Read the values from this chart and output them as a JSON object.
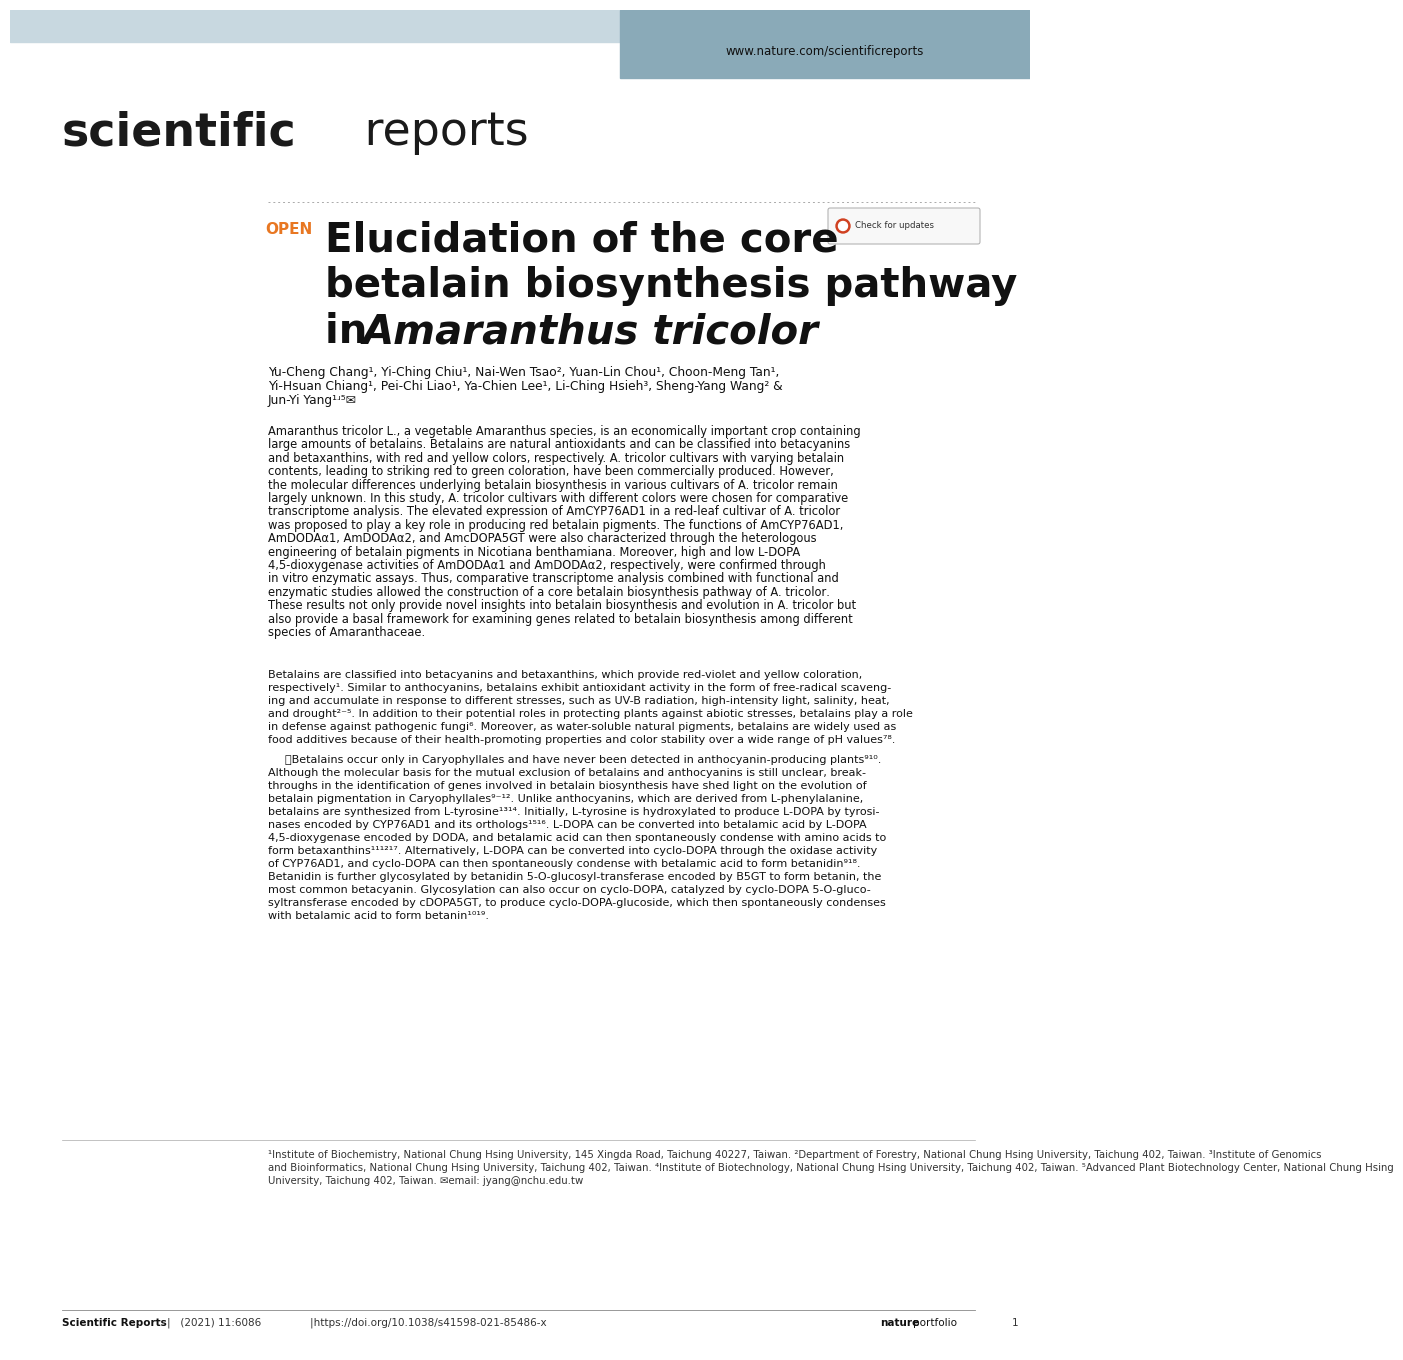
{
  "bg_color": "#ffffff",
  "header_bg": "#c8d8e0",
  "header_tab_bg": "#8aaab8",
  "header_url": "www.nature.com/scientificreports",
  "journal_bold": "scientific",
  "journal_regular": " reports",
  "journal_color": "#1a1a1a",
  "open_label": "OPEN",
  "open_color": "#e87722",
  "title_line1": "Elucidation of the core",
  "title_line2": "betalain biosynthesis pathway",
  "title_line3_normal": "in ",
  "title_line3_italic": "Amaranthus tricolor",
  "title_color": "#111111",
  "authors_line1": "Yu-Cheng Chang¹, Yi-Ching Chiu¹, Nai-Wen Tsao², Yuan-Lin Chou¹, Choon-Meng Tan¹,",
  "authors_line2": "Yi-Hsuan Chiang¹, Pei-Chi Liao¹, Ya-Chien Lee¹, Li-Ching Hsieh³, Sheng-Yang Wang² &",
  "authors_line3": "Jun-Yi Yang¹ʴ⁵✉",
  "abstract_line1": "Amaranthus tricolor L., a vegetable ​Amaranthus​ species, is an economically important crop containing",
  "abstract_line2": "large amounts of betalains. Betalains are natural antioxidants and can be classified into betacyanins",
  "abstract_line3": "and betaxanthins, with red and yellow colors, respectively. ​A. tricolor​ cultivars with varying betalain",
  "abstract_line4": "contents, leading to striking red to green coloration, have been commercially produced. However,",
  "abstract_line5": "the molecular differences underlying betalain biosynthesis in various cultivars of ​A. tricolor​ remain",
  "abstract_line6": "largely unknown. In this study, ​A. tricolor​ cultivars with different colors were chosen for comparative",
  "abstract_line7": "transcriptome analysis. The elevated expression of ​AmCYP76AD1​ in a red-leaf cultivar of ​A. tricolor",
  "abstract_line8": "was proposed to play a key role in producing red betalain pigments. The functions of ​AmCYP76AD1​,",
  "abstract_line9": "​AmDODAα1​, ​AmDODAα2​, and ​AmcDOPA5GT​ were also characterized through the heterologous",
  "abstract_line10": "engineering of betalain pigments in ​Nicotiana benthamiana​. Moreover, high and low L-DOPA",
  "abstract_line11": "4,5-dioxygenase activities of AmDODAα1 and AmDODAα2, respectively, were confirmed through",
  "abstract_line12": "in vitro enzymatic assays. Thus, comparative transcriptome analysis combined with functional and",
  "abstract_line13": "enzymatic studies allowed the construction of a core betalain biosynthesis pathway of ​A. tricolor​.",
  "abstract_line14": "These results not only provide novel insights into betalain biosynthesis and evolution in ​A. tricolor​ but",
  "abstract_line15": "also provide a basal framework for examining genes related to betalain biosynthesis among different",
  "abstract_line16": "species of ​Amaranthaceae​.",
  "body1_line1": "Betalains are classified into betacyanins and betaxanthins, which provide red-violet and yellow coloration,",
  "body1_line2": "respectively¹. Similar to anthocyanins, betalains exhibit antioxidant activity in the form of free-radical scaveng-",
  "body1_line3": "ing and accumulate in response to different stresses, such as UV-B radiation, high-intensity light, salinity, heat,",
  "body1_line4": "and drought²⁻⁵. In addition to their potential roles in protecting plants against abiotic stresses, betalains play a role",
  "body1_line5": "in defense against pathogenic fungi⁶. Moreover, as water-soluble natural pigments, betalains are widely used as",
  "body1_line6": "food additives because of their health-promoting properties and color stability over a wide range of pH values⁷⁸.",
  "body2_line1": "\tBetalains occur only in Caryophyllales and have never been detected in anthocyanin-producing plants⁹¹⁰.",
  "body2_line2": "Although the molecular basis for the mutual exclusion of betalains and anthocyanins is still unclear, break-",
  "body2_line3": "throughs in the identification of genes involved in betalain biosynthesis have shed light on the evolution of",
  "body2_line4": "betalain pigmentation in Caryophyllales⁹⁻¹². Unlike anthocyanins, which are derived from L-phenylalanine,",
  "body2_line5": "betalains are synthesized from L-tyrosine¹³¹⁴. Initially, L-tyrosine is hydroxylated to produce L-DOPA by tyrosi-",
  "body2_line6": "nases encoded by ​CYP76AD1​ and its orthologs¹⁵¹⁶. L-DOPA can be converted into betalamic acid by L-DOPA",
  "body2_line7": "4,5-dioxygenase encoded by ​DODA​, and betalamic acid can then spontaneously condense with amino acids to",
  "body2_line8": "form betaxanthins¹¹¹²¹⁷. Alternatively, L-DOPA can be converted into ​cyclo​-DOPA through the oxidase activity",
  "body2_line9": "of CYP76AD1, and ​cyclo​-DOPA can then spontaneously condense with betalamic acid to form betanidin⁹¹⁸.",
  "body2_line10": "Betanidin is further glycosylated by betanidin 5-​O​-glucosyl-transferase encoded by ​B5GT​ to form betanin, the",
  "body2_line11": "most common betacyanin. Glycosylation can also occur on ​cyclo​-DOPA, catalyzed by ​cyclo​-DOPA 5-​O​-gluco-",
  "body2_line12": "syltransferase encoded by ​cDOPA5GT​, to produce ​cyclo​-DOPA-glucoside, which then spontaneously condenses",
  "body2_line13": "with betalamic acid to form betanin¹⁰¹⁹.",
  "footnote1": "¹Institute of Biochemistry, National Chung Hsing University, 145 Xingda Road, Taichung 40227, Taiwan. ²Department of Forestry, National Chung Hsing University, Taichung 402, Taiwan. ³Institute of Genomics",
  "footnote2": "and Bioinformatics, National Chung Hsing University, Taichung 402, Taiwan. ⁴Institute of Biotechnology, National Chung Hsing University, Taichung 402, Taiwan. ⁵Advanced Plant Biotechnology Center, National Chung Hsing",
  "footnote3": "University, Taichung 402, Taiwan. ✉email: jyang@nchu.edu.tw",
  "footer_left1": "Scientific Reports",
  "footer_left2": "|   (2021) 11:6086               |https://doi.org/10.1038/s41598-021-85486-x",
  "footer_nature_bold": "nature",
  "footer_nature_reg": "portfolio",
  "footer_page": "1"
}
